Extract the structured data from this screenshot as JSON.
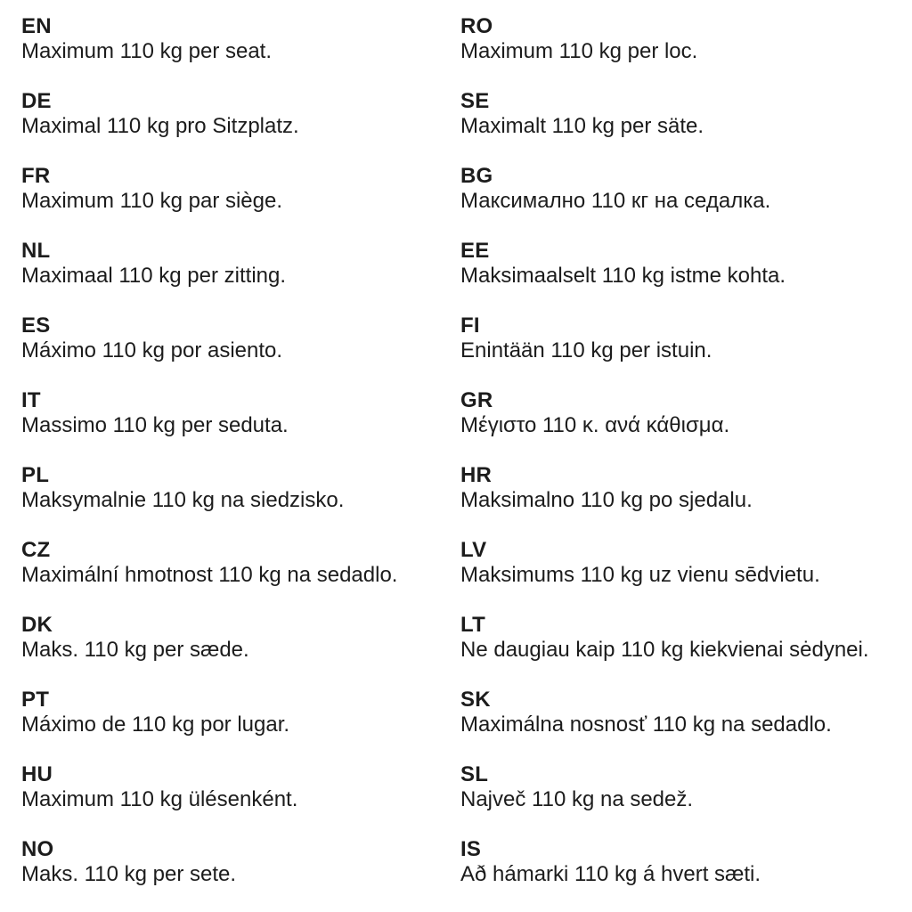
{
  "document": {
    "kind": "multilingual-weight-notice",
    "text_color": "#1c1c1c",
    "background_color": "#ffffff"
  },
  "columns": [
    {
      "entries": [
        {
          "code": "EN",
          "text": "Maximum 110 kg per seat."
        },
        {
          "code": "DE",
          "text": "Maximal 110 kg pro Sitzplatz."
        },
        {
          "code": "FR",
          "text": "Maximum 110 kg par siège."
        },
        {
          "code": "NL",
          "text": "Maximaal 110 kg per zitting."
        },
        {
          "code": "ES",
          "text": "Máximo 110 kg por asiento."
        },
        {
          "code": "IT",
          "text": "Massimo 110 kg per seduta."
        },
        {
          "code": "PL",
          "text": "Maksymalnie 110 kg na siedzisko."
        },
        {
          "code": "CZ",
          "text": "Maximální hmotnost 110 kg na sedadlo."
        },
        {
          "code": "DK",
          "text": "Maks. 110 kg per sæde."
        },
        {
          "code": "PT",
          "text": "Máximo de 110 kg por lugar."
        },
        {
          "code": "HU",
          "text": "Maximum 110 kg ülésenként."
        },
        {
          "code": "NO",
          "text": "Maks. 110 kg per sete."
        }
      ]
    },
    {
      "entries": [
        {
          "code": "RO",
          "text": "Maximum 110 kg per loc."
        },
        {
          "code": "SE",
          "text": "Maximalt 110 kg per säte."
        },
        {
          "code": "BG",
          "text": "Максимално 110 кг на седалка."
        },
        {
          "code": "EE",
          "text": "Maksimaalselt 110 kg istme kohta."
        },
        {
          "code": "FI",
          "text": "Enintään 110 kg per istuin."
        },
        {
          "code": "GR",
          "text": "Μέγιστο 110 κ. ανά κάθισμα."
        },
        {
          "code": "HR",
          "text": "Maksimalno 110 kg po sjedalu."
        },
        {
          "code": "LV",
          "text": "Maksimums 110 kg uz vienu sēdvietu."
        },
        {
          "code": "LT",
          "text": "Ne daugiau kaip 110 kg kiekvienai sėdynei."
        },
        {
          "code": "SK",
          "text": "Maximálna nosnosť 110 kg na sedadlo."
        },
        {
          "code": "SL",
          "text": "Največ 110 kg na sedež."
        },
        {
          "code": "IS",
          "text": "Að hámarki 110 kg á hvert sæti."
        }
      ]
    }
  ]
}
